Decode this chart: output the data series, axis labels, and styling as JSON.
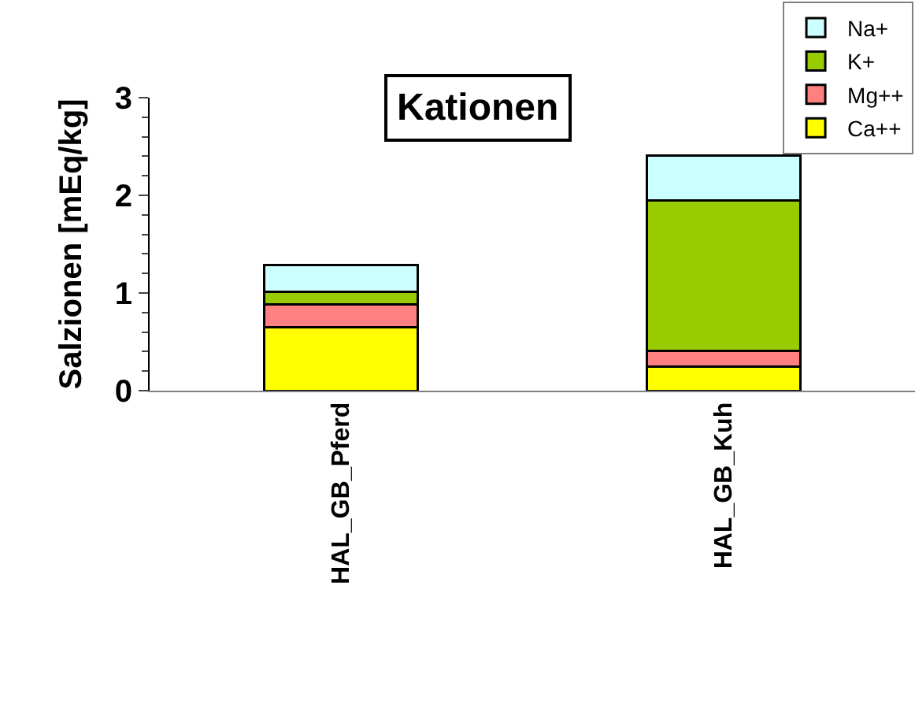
{
  "chart_data": {
    "type": "bar",
    "title": "Kationen",
    "ylabel": "Salzionen [mEq/kg]",
    "categories": [
      "HAL_GB_Pferd",
      "HAL_GB_Kuh"
    ],
    "series": [
      {
        "name": "Ca++",
        "color": "#ffff00",
        "values": [
          0.65,
          0.25
        ]
      },
      {
        "name": "Mg++",
        "color": "#ff8080",
        "values": [
          0.23,
          0.16
        ]
      },
      {
        "name": "K+",
        "color": "#99cc00",
        "values": [
          0.13,
          1.54
        ]
      },
      {
        "name": "Na+",
        "color": "#ccffff",
        "values": [
          0.28,
          0.46
        ]
      }
    ],
    "stacked": true,
    "ylim": [
      0,
      3
    ],
    "yticks": [
      0,
      1,
      2,
      3
    ],
    "legend": "top right"
  }
}
